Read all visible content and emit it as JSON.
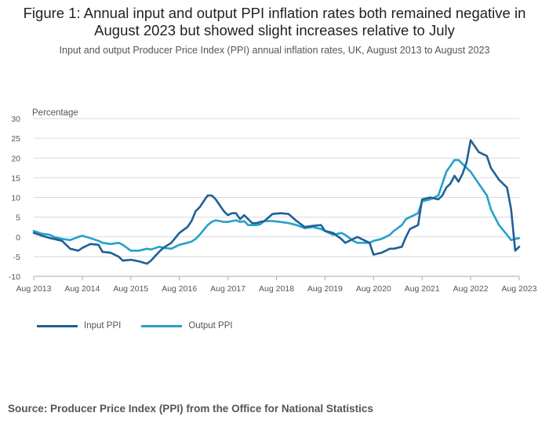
{
  "title": "Figure 1: Annual input and output PPI inflation rates both remained negative in August 2023 but showed slight increases relative to July",
  "subtitle": "Input and output Producer Price Index (PPI) annual inflation rates, UK, August 2013 to August 2023",
  "source": "Source: Producer Price Index (PPI) from the Office for National Statistics",
  "chart_data": {
    "type": "line",
    "ylabel": "Percentage",
    "xlabel": "",
    "ylim": [
      -10,
      30
    ],
    "yticks": [
      30,
      25,
      20,
      15,
      10,
      5,
      0,
      -5,
      -10
    ],
    "xlim": [
      2013.583,
      2023.583
    ],
    "xticks": [
      {
        "label": "Aug 2013",
        "value": 2013.583
      },
      {
        "label": "Aug 2014",
        "value": 2014.583
      },
      {
        "label": "Aug 2015",
        "value": 2015.583
      },
      {
        "label": "Aug 2016",
        "value": 2016.583
      },
      {
        "label": "Aug 2017",
        "value": 2017.583
      },
      {
        "label": "Aug 2018",
        "value": 2018.583
      },
      {
        "label": "Aug 2019",
        "value": 2019.583
      },
      {
        "label": "Aug 2020",
        "value": 2020.583
      },
      {
        "label": "Aug 2021",
        "value": 2021.583
      },
      {
        "label": "Aug 2022",
        "value": 2022.583
      },
      {
        "label": "Aug 2023",
        "value": 2023.583
      }
    ],
    "grid": true,
    "legend_position": "bottom-left",
    "series": [
      {
        "name": "Input PPI",
        "color": "#206095",
        "x": [
          2013.583,
          2013.75,
          2013.917,
          2014.0,
          2014.167,
          2014.333,
          2014.5,
          2014.583,
          2014.75,
          2014.917,
          2015.0,
          2015.167,
          2015.333,
          2015.417,
          2015.583,
          2015.75,
          2015.917,
          2016.0,
          2016.167,
          2016.25,
          2016.417,
          2016.583,
          2016.75,
          2016.833,
          2016.917,
          2017.0,
          2017.083,
          2017.167,
          2017.25,
          2017.333,
          2017.417,
          2017.5,
          2017.583,
          2017.667,
          2017.75,
          2017.833,
          2017.917,
          2018.0,
          2018.083,
          2018.167,
          2018.25,
          2018.333,
          2018.5,
          2018.667,
          2018.833,
          2019.0,
          2019.167,
          2019.333,
          2019.5,
          2019.583,
          2019.75,
          2019.917,
          2020.0,
          2020.167,
          2020.25,
          2020.333,
          2020.5,
          2020.583,
          2020.75,
          2020.917,
          2021.0,
          2021.167,
          2021.25,
          2021.333,
          2021.5,
          2021.583,
          2021.75,
          2021.917,
          2022.0,
          2022.083,
          2022.167,
          2022.25,
          2022.333,
          2022.417,
          2022.5,
          2022.583,
          2022.75,
          2022.917,
          2023.0,
          2023.167,
          2023.333,
          2023.417,
          2023.5,
          2023.583
        ],
        "values": [
          1.0,
          0.3,
          -0.3,
          -0.5,
          -1.0,
          -3.0,
          -3.5,
          -2.8,
          -1.8,
          -2.0,
          -3.8,
          -4.0,
          -5.0,
          -6.0,
          -5.8,
          -6.2,
          -6.8,
          -6.0,
          -3.8,
          -2.8,
          -1.5,
          1.0,
          2.5,
          4.0,
          6.5,
          7.5,
          9.0,
          10.5,
          10.5,
          9.5,
          8.0,
          6.5,
          5.5,
          6.0,
          6.0,
          4.5,
          5.5,
          4.5,
          3.5,
          3.5,
          3.8,
          4.0,
          5.8,
          6.0,
          5.8,
          4.0,
          2.5,
          2.8,
          3.0,
          1.5,
          1.0,
          -0.5,
          -1.5,
          -0.5,
          0.0,
          -0.5,
          -1.5,
          -4.5,
          -4.0,
          -3.0,
          -3.0,
          -2.5,
          0.0,
          2.0,
          3.0,
          9.5,
          10.0,
          9.5,
          10.5,
          12.5,
          13.5,
          15.5,
          14.0,
          16.0,
          19.0,
          24.5,
          21.5,
          20.5,
          17.5,
          14.5,
          12.5,
          7.0,
          -3.5,
          -2.5
        ]
      },
      {
        "name": "Output PPI",
        "color": "#27a0cc",
        "x": [
          2013.583,
          2013.75,
          2013.917,
          2014.0,
          2014.167,
          2014.333,
          2014.5,
          2014.583,
          2014.75,
          2014.917,
          2015.0,
          2015.167,
          2015.333,
          2015.417,
          2015.583,
          2015.75,
          2015.917,
          2016.0,
          2016.167,
          2016.25,
          2016.417,
          2016.583,
          2016.75,
          2016.833,
          2016.917,
          2017.0,
          2017.167,
          2017.25,
          2017.333,
          2017.417,
          2017.5,
          2017.583,
          2017.667,
          2017.75,
          2017.833,
          2017.917,
          2018.0,
          2018.167,
          2018.25,
          2018.333,
          2018.5,
          2018.667,
          2018.833,
          2019.0,
          2019.167,
          2019.333,
          2019.5,
          2019.583,
          2019.75,
          2019.917,
          2020.0,
          2020.167,
          2020.25,
          2020.333,
          2020.5,
          2020.583,
          2020.75,
          2020.917,
          2021.0,
          2021.167,
          2021.25,
          2021.333,
          2021.5,
          2021.583,
          2021.75,
          2021.917,
          2022.0,
          2022.083,
          2022.167,
          2022.25,
          2022.333,
          2022.417,
          2022.5,
          2022.583,
          2022.75,
          2022.917,
          2023.0,
          2023.167,
          2023.333,
          2023.417,
          2023.5,
          2023.583
        ],
        "values": [
          1.5,
          0.8,
          0.5,
          0.0,
          -0.5,
          -0.8,
          0.0,
          0.3,
          -0.3,
          -1.0,
          -1.5,
          -1.8,
          -1.5,
          -2.0,
          -3.5,
          -3.5,
          -3.0,
          -3.2,
          -2.5,
          -2.8,
          -3.0,
          -2.0,
          -1.5,
          -1.2,
          -0.5,
          0.5,
          3.0,
          3.8,
          4.2,
          4.0,
          3.8,
          3.8,
          4.0,
          4.2,
          3.8,
          4.0,
          3.0,
          3.0,
          3.2,
          4.0,
          4.0,
          3.8,
          3.5,
          3.0,
          2.2,
          2.5,
          2.0,
          1.5,
          0.5,
          1.0,
          0.5,
          -1.0,
          -1.5,
          -1.5,
          -1.5,
          -1.0,
          -0.5,
          0.5,
          1.5,
          3.0,
          4.5,
          5.0,
          6.0,
          9.0,
          9.5,
          10.5,
          13.5,
          16.5,
          18.0,
          19.5,
          19.5,
          18.5,
          17.5,
          16.5,
          13.5,
          10.5,
          7.0,
          3.0,
          0.5,
          -0.8,
          -0.5,
          -0.3
        ]
      }
    ]
  }
}
